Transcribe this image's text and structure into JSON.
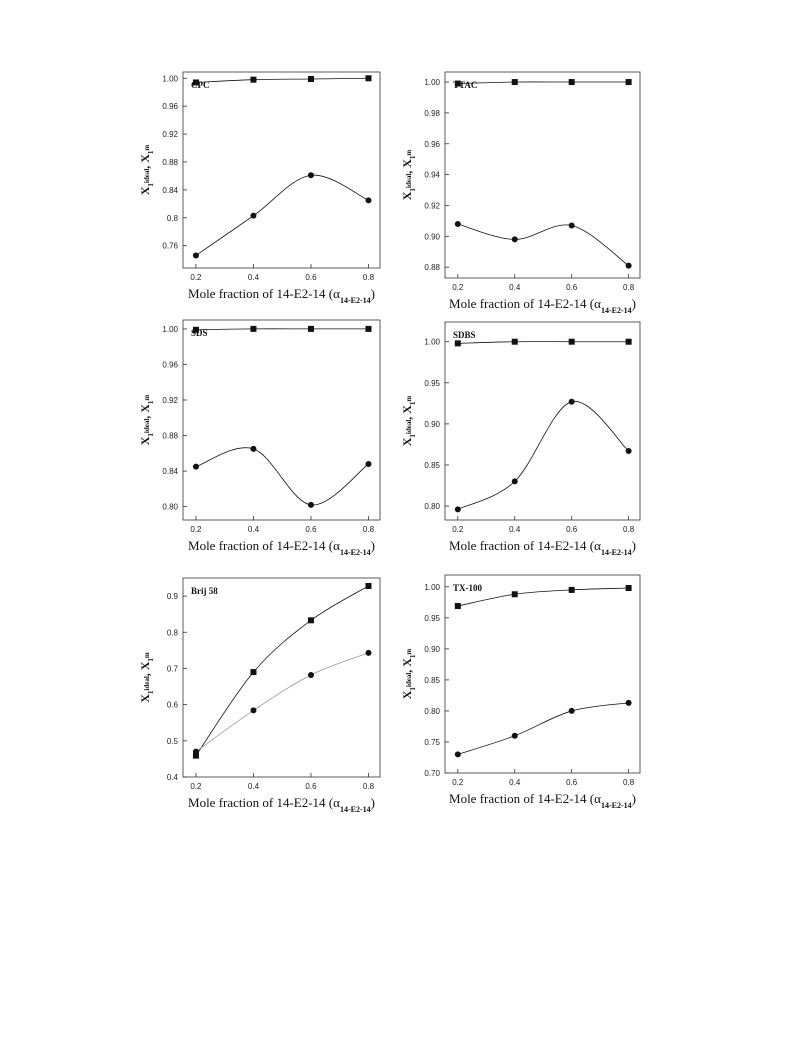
{
  "chart_data": [
    {
      "type": "scatter",
      "annotation": "CPC",
      "x": [
        0.2,
        0.4,
        0.6,
        0.8
      ],
      "series": [
        {
          "marker": "square",
          "color": "#111111",
          "values": [
            0.994,
            0.998,
            0.999,
            1.0
          ]
        },
        {
          "marker": "circle",
          "color": "#111111",
          "values": [
            0.746,
            0.803,
            0.861,
            0.825
          ]
        }
      ],
      "xlim": [
        0.155,
        0.84
      ],
      "xticks": [
        0.2,
        0.4,
        0.6,
        0.8
      ],
      "ylim": [
        0.728,
        1.009
      ],
      "yticks": [
        0.76,
        0.8,
        0.84,
        0.88,
        0.92,
        0.96,
        {
          "value": 1.0,
          "label": "1.00"
        }
      ],
      "xlabel": [
        "Mole fraction of 14-E2-14 (α",
        "14-E2-14",
        ")"
      ],
      "ylabel": [
        "X",
        "1",
        "ideal",
        ", X",
        "1",
        "m"
      ]
    },
    {
      "type": "scatter",
      "annotation": "TTAC",
      "x": [
        0.2,
        0.4,
        0.6,
        0.8
      ],
      "series": [
        {
          "marker": "square",
          "color": "#111111",
          "values": [
            0.999,
            1.0,
            1.0,
            1.0
          ]
        },
        {
          "marker": "circle",
          "color": "#111111",
          "values": [
            0.908,
            0.898,
            0.907,
            0.881
          ]
        }
      ],
      "xlim": [
        0.155,
        0.84
      ],
      "xticks": [
        0.2,
        0.4,
        0.6,
        0.8
      ],
      "ylim": [
        0.873,
        1.0065
      ],
      "yticks": [
        0.88,
        {
          "value": 0.9,
          "label": "0.90"
        },
        0.92,
        0.94,
        0.96,
        0.98,
        {
          "value": 1.0,
          "label": "1.00"
        }
      ],
      "xlabel": [
        "Mole fraction of 14-E2-14 (α",
        "14-E2-14",
        ")"
      ],
      "ylabel": [
        "X",
        "1",
        "ideal",
        ", X",
        "1",
        "m"
      ]
    },
    {
      "type": "scatter",
      "annotation": "SDS",
      "x": [
        0.2,
        0.4,
        0.6,
        0.8
      ],
      "series": [
        {
          "marker": "square",
          "color": "#111111",
          "values": [
            0.999,
            1.0,
            1.0,
            1.0
          ]
        },
        {
          "marker": "circle",
          "color": "#111111",
          "values": [
            0.845,
            0.865,
            0.802,
            0.848
          ]
        }
      ],
      "xlim": [
        0.155,
        0.84
      ],
      "xticks": [
        0.2,
        0.4,
        0.6,
        0.8
      ],
      "ylim": [
        0.785,
        1.01
      ],
      "yticks": [
        {
          "value": 0.8,
          "label": "0.80"
        },
        0.84,
        0.88,
        0.92,
        0.96,
        {
          "value": 1.0,
          "label": "1.00"
        }
      ],
      "xlabel": [
        "Mole fraction of 14-E2-14 (α",
        "14-E2-14",
        ")"
      ],
      "ylabel": [
        "X",
        "1",
        "ideal",
        ", X",
        "1",
        "m"
      ]
    },
    {
      "type": "scatter",
      "annotation": "SDBS",
      "x": [
        0.2,
        0.4,
        0.6,
        0.8
      ],
      "series": [
        {
          "marker": "square",
          "color": "#111111",
          "values": [
            0.998,
            1.0,
            1.0,
            1.0
          ]
        },
        {
          "marker": "circle",
          "color": "#111111",
          "values": [
            0.796,
            0.83,
            0.927,
            0.867
          ]
        }
      ],
      "xlim": [
        0.155,
        0.84
      ],
      "xticks": [
        0.2,
        0.4,
        0.6,
        0.8
      ],
      "ylim": [
        0.783,
        1.024
      ],
      "yticks": [
        {
          "value": 0.8,
          "label": "0.80"
        },
        0.85,
        {
          "value": 0.9,
          "label": "0.90"
        },
        0.95,
        {
          "value": 1.0,
          "label": "1.00"
        }
      ],
      "xlabel": [
        "Mole fraction of 14-E2-14 (α",
        "14-E2-14",
        ")"
      ],
      "ylabel": [
        "X",
        "1",
        "ideal",
        ", X",
        "1",
        "m"
      ]
    },
    {
      "type": "scatter",
      "annotation": "Brij 58",
      "x": [
        0.2,
        0.4,
        0.6,
        0.8
      ],
      "series": [
        {
          "marker": "square",
          "color": "#111111",
          "values": [
            0.459,
            0.69,
            0.833,
            0.928
          ]
        },
        {
          "marker": "circle",
          "color": "#111111",
          "line_color": "#999999",
          "values": [
            0.47,
            0.584,
            0.682,
            0.743
          ]
        }
      ],
      "xlim": [
        0.155,
        0.84
      ],
      "xticks": [
        0.2,
        0.4,
        0.6,
        0.8
      ],
      "ylim": [
        0.4,
        0.95
      ],
      "yticks": [
        0.4,
        0.5,
        0.6,
        0.7,
        0.8,
        0.9
      ],
      "xlabel": [
        "Mole fraction of 14-E2-14 (α",
        "14-E2-14",
        ")"
      ],
      "ylabel": [
        "X",
        "1",
        "ideal",
        ", X",
        "1",
        "m"
      ]
    },
    {
      "type": "scatter",
      "annotation": "TX-100",
      "x": [
        0.2,
        0.4,
        0.6,
        0.8
      ],
      "series": [
        {
          "marker": "square",
          "color": "#111111",
          "values": [
            0.969,
            0.988,
            0.995,
            0.998
          ]
        },
        {
          "marker": "circle",
          "color": "#111111",
          "values": [
            0.73,
            0.76,
            0.8,
            0.813
          ]
        }
      ],
      "xlim": [
        0.155,
        0.84
      ],
      "xticks": [
        0.2,
        0.4,
        0.6,
        0.8
      ],
      "ylim": [
        0.7,
        1.019
      ],
      "yticks": [
        {
          "value": 0.7,
          "label": "0.70"
        },
        0.75,
        {
          "value": 0.8,
          "label": "0.80"
        },
        0.85,
        {
          "value": 0.9,
          "label": "0.90"
        },
        0.95,
        {
          "value": 1.0,
          "label": "1.00"
        }
      ],
      "xlabel": [
        "Mole fraction of 14-E2-14 (α",
        "14-E2-14",
        ")"
      ],
      "ylabel": [
        "X",
        "1",
        "ideal",
        ", X",
        "1",
        "m"
      ]
    }
  ]
}
